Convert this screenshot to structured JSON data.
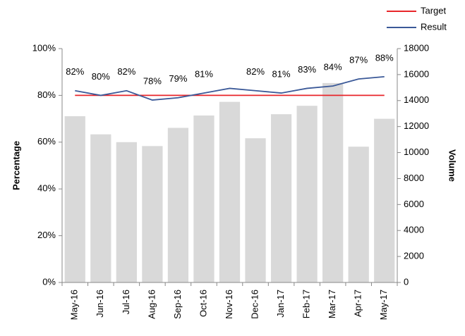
{
  "chart_data": {
    "type": "combo",
    "categories": [
      "May-16",
      "Jun-16",
      "Jul-16",
      "Aug-16",
      "Sep-16",
      "Oct-16",
      "Nov-16",
      "Dec-16",
      "Jan-17",
      "Feb-17",
      "Mar-17",
      "Apr-17",
      "May-17"
    ],
    "series": [
      {
        "type": "bar",
        "axis": "y2",
        "color": "#d9d9d9",
        "values": [
          12800,
          11400,
          10800,
          10500,
          11900,
          12850,
          13900,
          11100,
          12950,
          13600,
          15350,
          10450,
          12600
        ]
      },
      {
        "type": "line",
        "name": "Target",
        "color": "#e8262a",
        "values": [
          80,
          80,
          80,
          80,
          80,
          80,
          80,
          80,
          80,
          80,
          80,
          80,
          80
        ]
      },
      {
        "type": "line",
        "name": "Result",
        "color": "#3b5998",
        "values": [
          82,
          80,
          82,
          78,
          79,
          81,
          83,
          82,
          81,
          83,
          84,
          87,
          88
        ],
        "value_labels": [
          "82%",
          "80%",
          "82%",
          "78%",
          "79%",
          "81%",
          null,
          "82%",
          "81%",
          "83%",
          "84%",
          "87%",
          "88%"
        ]
      }
    ],
    "ylabel": "Percentage",
    "y2label": "Volume",
    "ylim": [
      0,
      100
    ],
    "yticks": [
      {
        "value": 0,
        "label": "0%"
      },
      {
        "value": 20,
        "label": "20%"
      },
      {
        "value": 40,
        "label": "40%"
      },
      {
        "value": 60,
        "label": "60%"
      },
      {
        "value": 80,
        "label": "80%"
      },
      {
        "value": 100,
        "label": "100%"
      }
    ],
    "y2lim": [
      0,
      18000
    ],
    "y2ticks": [
      0,
      2000,
      4000,
      6000,
      8000,
      10000,
      12000,
      14000,
      16000,
      18000
    ],
    "legend": "top-right"
  }
}
